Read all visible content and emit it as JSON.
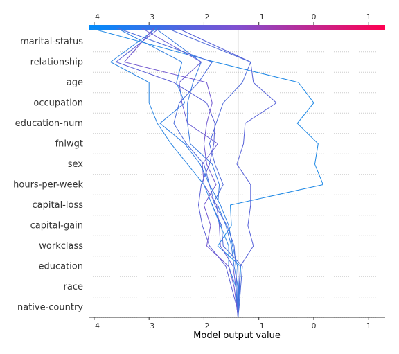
{
  "chart_data": {
    "type": "line",
    "title": "",
    "xlabel": "Model output value",
    "ylabel": "",
    "xlim": [
      -4.1,
      1.3
    ],
    "x_ticks": [
      -4,
      -3,
      -2,
      -1,
      0,
      1
    ],
    "x_tick_labels": [
      "−4",
      "−3",
      "−2",
      "−1",
      "0",
      "1"
    ],
    "base_value": -1.38,
    "features": [
      "marital-status",
      "relationship",
      "age",
      "occupation",
      "education-num",
      "fnlwgt",
      "sex",
      "hours-per-week",
      "capital-loss",
      "capital-gain",
      "workclass",
      "education",
      "race",
      "native-country"
    ],
    "grid": true,
    "colorbar": {
      "position": "top",
      "low_color": "#008bfb",
      "mid_color": "#8050d0",
      "high_color": "#ff0051"
    },
    "series": [
      {
        "color": "#1e88e5",
        "values": [
          -1.38,
          -1.37,
          -1.35,
          -1.33,
          -1.75,
          -1.5,
          -1.52,
          0.17,
          0.02,
          0.08,
          -0.3,
          0.0,
          -0.28,
          -1.8,
          -4.1
        ]
      },
      {
        "color": "#5560d8",
        "values": [
          -1.38,
          -1.37,
          -1.36,
          -1.34,
          -1.1,
          -1.2,
          -1.15,
          -1.15,
          -1.4,
          -1.28,
          -1.25,
          -0.68,
          -1.1,
          -1.15,
          -2.5
        ]
      },
      {
        "color": "#3a7be0",
        "values": [
          -1.38,
          -1.37,
          -1.38,
          -1.45,
          -1.5,
          -1.6,
          -1.75,
          -1.72,
          -1.85,
          -2.25,
          -2.3,
          -2.3,
          -2.2,
          -2.05,
          -2.9
        ]
      },
      {
        "color": "#4f6ad9",
        "values": [
          -1.38,
          -1.36,
          -1.33,
          -1.3,
          -1.65,
          -1.68,
          -1.85,
          -1.65,
          -1.8,
          -1.9,
          -1.78,
          -1.65,
          -1.3,
          -1.15,
          -2.7
        ]
      },
      {
        "color": "#6a5cd3",
        "values": [
          -1.38,
          -1.4,
          -1.42,
          -1.47,
          -1.7,
          -1.72,
          -1.77,
          -2.0,
          -2.03,
          -1.75,
          -2.3,
          -2.4,
          -2.45,
          -2.05,
          -3.15
        ]
      },
      {
        "color": "#2a85e2",
        "values": [
          -1.38,
          -1.39,
          -1.42,
          -1.55,
          -1.55,
          -1.7,
          -1.85,
          -2.0,
          -2.3,
          -2.6,
          -2.85,
          -3.0,
          -3.0,
          -3.7,
          -2.85
        ]
      },
      {
        "color": "#5a5fd6",
        "values": [
          -1.38,
          -1.4,
          -1.5,
          -1.6,
          -1.9,
          -2.03,
          -2.1,
          -2.05,
          -1.9,
          -1.82,
          -1.8,
          -1.95,
          -2.55,
          -3.6,
          -2.8
        ]
      },
      {
        "color": "#7056cf",
        "values": [
          -1.38,
          -1.4,
          -1.45,
          -1.55,
          -1.95,
          -1.88,
          -2.0,
          -1.78,
          -1.95,
          -2.0,
          -1.95,
          -1.85,
          -1.95,
          -3.45,
          -2.9
        ]
      },
      {
        "color": "#2f80e3",
        "values": [
          -1.38,
          -1.38,
          -1.37,
          -1.39,
          -1.48,
          -1.55,
          -1.7,
          -1.9,
          -2.07,
          -2.35,
          -2.8,
          -2.35,
          -2.5,
          -2.4,
          -3.6
        ]
      },
      {
        "color": "#4b6bdb",
        "values": [
          -1.38,
          -1.39,
          -1.4,
          -1.42,
          -1.45,
          -1.58,
          -1.8,
          -1.9,
          -2.0,
          -2.32,
          -2.55,
          -2.45,
          -2.1,
          -1.85,
          -3.6
        ]
      }
    ]
  }
}
